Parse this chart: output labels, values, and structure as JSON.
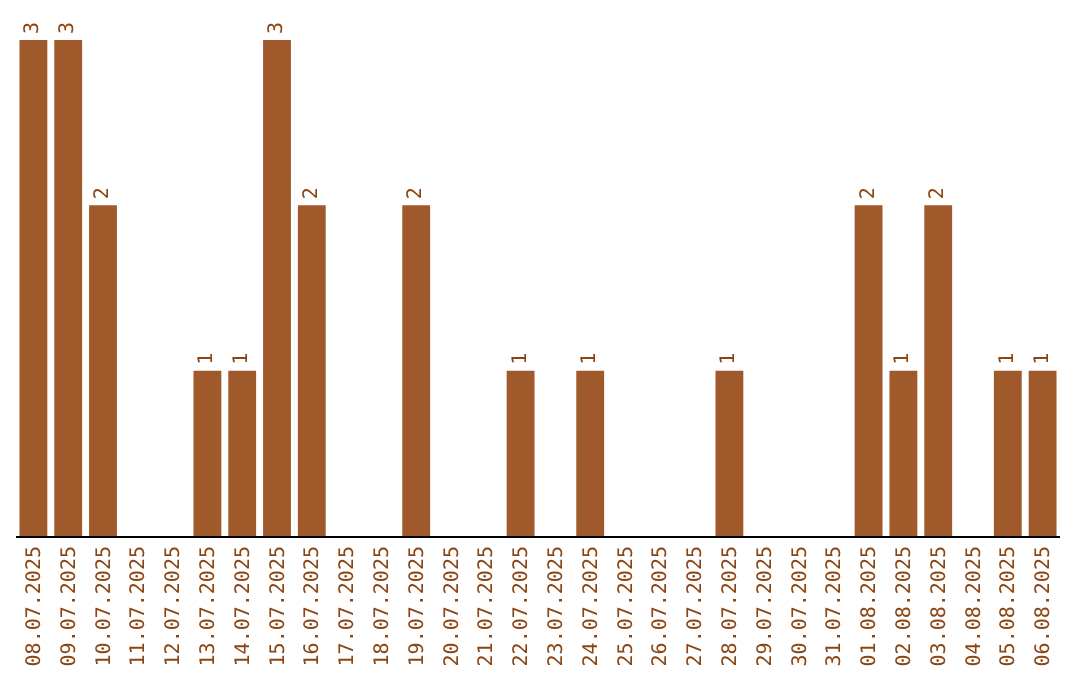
{
  "chart_data": {
    "type": "bar",
    "categories": [
      "08.07.2025",
      "09.07.2025",
      "10.07.2025",
      "11.07.2025",
      "12.07.2025",
      "13.07.2025",
      "14.07.2025",
      "15.07.2025",
      "16.07.2025",
      "17.07.2025",
      "18.07.2025",
      "19.07.2025",
      "20.07.2025",
      "21.07.2025",
      "22.07.2025",
      "23.07.2025",
      "24.07.2025",
      "25.07.2025",
      "26.07.2025",
      "27.07.2025",
      "28.07.2025",
      "29.07.2025",
      "30.07.2025",
      "31.07.2025",
      "01.08.2025",
      "02.08.2025",
      "03.08.2025",
      "04.08.2025",
      "05.08.2025",
      "06.08.2025"
    ],
    "values": [
      3,
      3,
      2,
      0,
      0,
      1,
      1,
      3,
      2,
      0,
      0,
      2,
      0,
      0,
      1,
      0,
      1,
      0,
      0,
      0,
      1,
      0,
      0,
      0,
      2,
      1,
      2,
      0,
      1,
      1
    ],
    "value_labels": [
      "3",
      "3",
      "2",
      null,
      null,
      "1",
      "1",
      "3",
      "2",
      null,
      null,
      "2",
      null,
      null,
      "1",
      null,
      "1",
      null,
      null,
      null,
      "1",
      null,
      null,
      null,
      "2",
      "1",
      "2",
      null,
      "1",
      "1"
    ],
    "color": "#a0592a",
    "ylim": [
      0,
      3
    ],
    "tick_labels": "x",
    "grid": false,
    "legend": false
  }
}
